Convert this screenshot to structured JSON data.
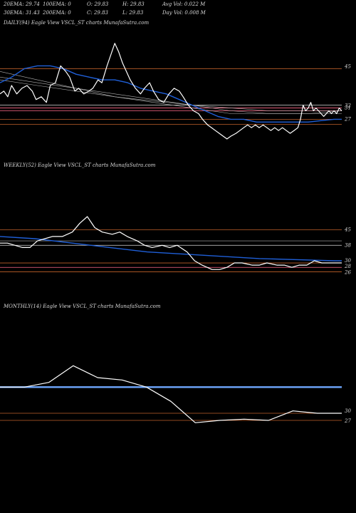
{
  "header": {
    "row1": {
      "ema20": "20EMA: 29.74",
      "ema100": "100EMA: 0",
      "open": "O: 29.83",
      "high": "H: 29.83",
      "avg_vol": "Avg Vol: 0.022  M"
    },
    "row2": {
      "ema30": "30EMA: 31.43",
      "ema200": "200EMA: 0",
      "close": "C: 29.83",
      "low": "L: 29.83",
      "day_vol": "Day Vol: 0.008 M"
    }
  },
  "colors": {
    "background": "#000000",
    "price": "#ffffff",
    "ema_blue": "#1f5fd8",
    "ema_light": "#6fa8ff",
    "gray_ma": "#b0b0b0",
    "level_orange": "#c0602a",
    "level_pink": "#ff6a8a",
    "level_white": "#d8d8d8"
  },
  "chart_data": [
    {
      "type": "line",
      "title": "DAILY(94) Eagle   View  VSCL_ST charts MunafaSutra.com",
      "ylim": [
        20,
        58
      ],
      "levels": [
        {
          "value": 45,
          "color": "#c0602a"
        },
        {
          "value": 32,
          "color": "#d8d8d8"
        },
        {
          "value": 31,
          "color": "#ff6a8a"
        },
        {
          "value": 30,
          "color": "#ff6a8a"
        },
        {
          "value": 27,
          "color": "#c0602a"
        },
        {
          "value": 25.2,
          "color": "#c0602a"
        }
      ],
      "tick_labels": [
        "45",
        "32",
        "31",
        "27"
      ],
      "series": [
        {
          "role": "price",
          "color": "#ffffff",
          "values": [
            [
              1,
              36
            ],
            [
              4,
              37
            ],
            [
              7,
              35
            ],
            [
              10,
              39
            ],
            [
              14,
              36
            ],
            [
              18,
              38
            ],
            [
              22,
              39
            ],
            [
              26,
              37
            ],
            [
              29,
              34
            ],
            [
              33,
              35
            ],
            [
              37,
              33
            ],
            [
              40,
              39
            ],
            [
              44,
              40
            ],
            [
              48,
              46
            ],
            [
              52,
              44
            ],
            [
              55,
              42
            ],
            [
              59,
              37
            ],
            [
              62,
              38
            ],
            [
              66,
              36
            ],
            [
              70,
              37
            ],
            [
              73,
              38
            ],
            [
              77,
              41
            ],
            [
              80,
              40
            ],
            [
              84,
              46
            ],
            [
              87,
              50
            ],
            [
              90,
              54
            ],
            [
              93,
              51
            ],
            [
              96,
              47
            ],
            [
              99,
              44
            ],
            [
              102,
              41
            ],
            [
              106,
              38
            ],
            [
              110,
              36
            ],
            [
              113,
              38
            ],
            [
              117,
              40
            ],
            [
              120,
              37
            ],
            [
              124,
              34
            ],
            [
              128,
              33
            ],
            [
              132,
              36
            ],
            [
              136,
              38
            ],
            [
              140,
              37
            ],
            [
              143,
              35
            ],
            [
              147,
              32
            ],
            [
              151,
              30
            ],
            [
              155,
              29
            ],
            [
              158,
              27
            ],
            [
              162,
              25
            ],
            [
              165,
              24
            ],
            [
              168,
              23
            ],
            [
              171,
              22
            ],
            [
              174,
              21
            ],
            [
              177,
              20
            ],
            [
              180,
              21
            ],
            [
              184,
              22
            ],
            [
              187,
              23
            ],
            [
              190,
              24
            ],
            [
              193,
              25
            ],
            [
              196,
              24
            ],
            [
              199,
              25
            ],
            [
              202,
              24
            ],
            [
              205,
              25
            ],
            [
              208,
              24
            ],
            [
              211,
              23
            ],
            [
              214,
              24
            ],
            [
              217,
              23
            ],
            [
              220,
              24
            ],
            [
              223,
              23
            ],
            [
              226,
              22
            ],
            [
              229,
              23
            ],
            [
              232,
              24
            ],
            [
              234,
              27
            ],
            [
              236,
              32
            ],
            [
              238,
              30
            ],
            [
              240,
              31
            ],
            [
              242,
              33
            ],
            [
              244,
              30
            ],
            [
              246,
              31
            ],
            [
              248,
              30
            ],
            [
              250,
              29
            ],
            [
              252,
              28
            ],
            [
              254,
              29
            ],
            [
              256,
              30
            ],
            [
              258,
              29
            ],
            [
              260,
              30
            ],
            [
              262,
              29
            ],
            [
              264,
              31
            ],
            [
              266,
              30
            ]
          ]
        },
        {
          "role": "ema",
          "color": "#1f5fd8",
          "values": [
            [
              1,
              40
            ],
            [
              10,
              42
            ],
            [
              20,
              45
            ],
            [
              30,
              46
            ],
            [
              40,
              46
            ],
            [
              50,
              45
            ],
            [
              60,
              43
            ],
            [
              70,
              42
            ],
            [
              80,
              41
            ],
            [
              90,
              41
            ],
            [
              100,
              40
            ],
            [
              110,
              38
            ],
            [
              120,
              37
            ],
            [
              130,
              36
            ],
            [
              140,
              34
            ],
            [
              150,
              32
            ],
            [
              160,
              30
            ],
            [
              170,
              28
            ],
            [
              180,
              27
            ],
            [
              190,
              27
            ],
            [
              200,
              26
            ],
            [
              210,
              26
            ],
            [
              220,
              26
            ],
            [
              230,
              26
            ],
            [
              240,
              26
            ],
            [
              250,
              26.5
            ],
            [
              260,
              27
            ],
            [
              266,
              27
            ]
          ]
        },
        {
          "role": "ma",
          "color": "#b0b0b0",
          "values": [
            [
              1,
              42
            ],
            [
              30,
              40
            ],
            [
              60,
              38
            ],
            [
              90,
              36
            ],
            [
              120,
              34
            ],
            [
              150,
              32
            ],
            [
              180,
              30
            ],
            [
              210,
              29
            ],
            [
              240,
              29
            ],
            [
              266,
              29
            ]
          ]
        },
        {
          "role": "ma",
          "color": "#b0b0b0",
          "values": [
            [
              1,
              44
            ],
            [
              30,
              41
            ],
            [
              60,
              38
            ],
            [
              90,
              35
            ],
            [
              120,
              33
            ],
            [
              150,
              31
            ],
            [
              180,
              29
            ],
            [
              210,
              29
            ],
            [
              240,
              29
            ],
            [
              266,
              30
            ]
          ]
        },
        {
          "role": "ma",
          "color": "#b0b0b0",
          "values": [
            [
              1,
              41
            ],
            [
              30,
              39
            ],
            [
              60,
              37
            ],
            [
              90,
              35
            ],
            [
              120,
              33.5
            ],
            [
              150,
              32
            ],
            [
              180,
              31
            ],
            [
              210,
              30
            ],
            [
              240,
              30
            ],
            [
              266,
              30
            ]
          ]
        }
      ]
    },
    {
      "type": "line",
      "title": "WEEKLY(52) Eagle   View  VSCL_ST charts MunafaSutra.com",
      "ylim": [
        20,
        62
      ],
      "levels": [
        {
          "value": 45,
          "color": "#c0602a"
        },
        {
          "value": 38,
          "color": "#d8d8d8"
        },
        {
          "value": 30,
          "color": "#c0602a"
        },
        {
          "value": 28,
          "color": "#ff6a8a"
        },
        {
          "value": 26,
          "color": "#c0602a"
        }
      ],
      "tick_labels": [
        "45",
        "38",
        "30",
        "28",
        "26"
      ],
      "series": [
        {
          "role": "price",
          "color": "#ffffff",
          "values": [
            [
              1,
              39
            ],
            [
              4,
              39
            ],
            [
              7,
              38
            ],
            [
              10,
              37
            ],
            [
              13,
              37
            ],
            [
              16,
              40
            ],
            [
              19,
              41
            ],
            [
              22,
              42
            ],
            [
              26,
              42
            ],
            [
              30,
              44
            ],
            [
              33,
              48
            ],
            [
              36,
              51
            ],
            [
              39,
              46
            ],
            [
              42,
              44
            ],
            [
              46,
              43
            ],
            [
              49,
              44
            ],
            [
              52,
              42
            ],
            [
              56,
              40
            ],
            [
              59,
              38
            ],
            [
              62,
              37
            ],
            [
              66,
              38
            ],
            [
              69,
              37
            ],
            [
              72,
              38
            ],
            [
              76,
              35
            ],
            [
              79,
              31
            ],
            [
              82,
              29
            ],
            [
              86,
              27
            ],
            [
              89,
              27
            ],
            [
              92,
              28
            ],
            [
              95,
              30
            ],
            [
              98,
              30
            ],
            [
              102,
              29
            ],
            [
              105,
              29
            ],
            [
              108,
              30
            ],
            [
              112,
              29
            ],
            [
              115,
              29
            ],
            [
              118,
              28
            ],
            [
              121,
              29
            ],
            [
              124,
              29
            ],
            [
              127,
              31
            ],
            [
              130,
              30
            ],
            [
              134,
              30
            ],
            [
              138,
              30
            ]
          ]
        },
        {
          "role": "ema",
          "color": "#1f5fd8",
          "values": [
            [
              1,
              42
            ],
            [
              15,
              41
            ],
            [
              30,
              39
            ],
            [
              45,
              37
            ],
            [
              60,
              35
            ],
            [
              75,
              34
            ],
            [
              90,
              33
            ],
            [
              105,
              32
            ],
            [
              120,
              31.5
            ],
            [
              135,
              31
            ],
            [
              138,
              31
            ]
          ]
        },
        {
          "role": "ma",
          "color": "#b0b0b0",
          "values": [
            [
              1,
              40
            ],
            [
              138,
              40
            ]
          ]
        }
      ]
    },
    {
      "type": "line",
      "title": "MONTHLY(14) Eagle   View  VSCL_ST charts MunafaSutra.com",
      "ylim": [
        20,
        62
      ],
      "levels": [
        {
          "value": 29,
          "color": "#c0602a"
        },
        {
          "value": 26,
          "color": "#c0602a"
        }
      ],
      "tick_labels": [
        "30",
        "27"
      ],
      "series": [
        {
          "role": "price",
          "color": "#ffffff",
          "values": [
            [
              0,
              40
            ],
            [
              1,
              40
            ],
            [
              2,
              42
            ],
            [
              3,
              49
            ],
            [
              4,
              44
            ],
            [
              5,
              43
            ],
            [
              6,
              40
            ],
            [
              7,
              34
            ],
            [
              8,
              25
            ],
            [
              9,
              26
            ],
            [
              10,
              26.5
            ],
            [
              11,
              26
            ],
            [
              12,
              30
            ],
            [
              13,
              29
            ],
            [
              14,
              29
            ]
          ]
        },
        {
          "role": "ema",
          "color": "#6fa8ff",
          "values": [
            [
              0,
              40
            ],
            [
              14,
              40
            ]
          ]
        }
      ]
    }
  ]
}
